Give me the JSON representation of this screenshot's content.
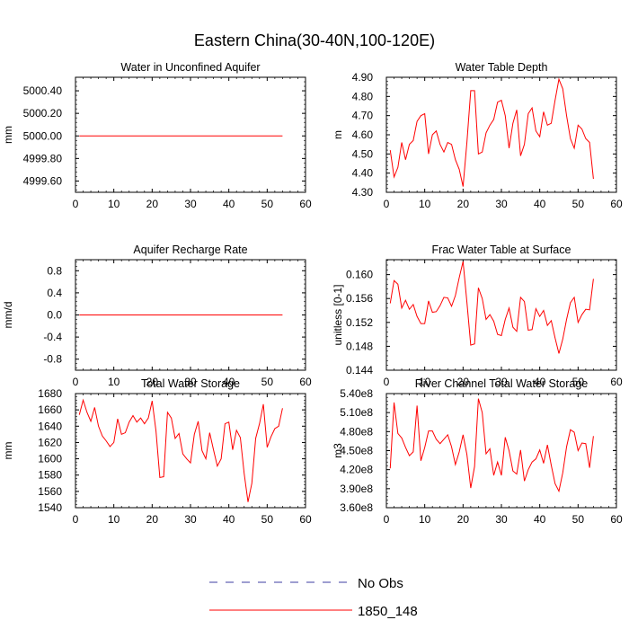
{
  "figure": {
    "title": "Eastern China(30-40N,100-120E)"
  },
  "chart_data": [
    {
      "type": "line",
      "title": "Water in Unconfined Aquifer",
      "xlabel": "",
      "ylabel": "mm",
      "xlim": [
        0,
        60
      ],
      "ylim": [
        4999.5,
        5000.52
      ],
      "xticks": [
        0,
        10,
        20,
        30,
        40,
        50,
        60
      ],
      "yticks": [
        4999.6,
        4999.8,
        5000.0,
        5000.2,
        5000.4
      ],
      "ytick_labels": [
        "4999.60",
        "4999.80",
        "5000.00",
        "5000.20",
        "5000.40"
      ],
      "series": [
        {
          "name": "1850_148",
          "x_start": 1,
          "values": [
            5000,
            5000,
            5000,
            5000,
            5000,
            5000,
            5000,
            5000,
            5000,
            5000,
            5000,
            5000,
            5000,
            5000,
            5000,
            5000,
            5000,
            5000,
            5000,
            5000,
            5000,
            5000,
            5000,
            5000,
            5000,
            5000,
            5000,
            5000,
            5000,
            5000,
            5000,
            5000,
            5000,
            5000,
            5000,
            5000,
            5000,
            5000,
            5000,
            5000,
            5000,
            5000,
            5000,
            5000,
            5000,
            5000,
            5000,
            5000,
            5000,
            5000,
            5000,
            5000,
            5000,
            5000
          ]
        }
      ]
    },
    {
      "type": "line",
      "title": "Water Table Depth",
      "xlabel": "",
      "ylabel": "m",
      "xlim": [
        0,
        60
      ],
      "ylim": [
        4.3,
        4.9
      ],
      "xticks": [
        0,
        10,
        20,
        30,
        40,
        50,
        60
      ],
      "yticks": [
        4.3,
        4.4,
        4.5,
        4.6,
        4.7,
        4.8,
        4.9
      ],
      "ytick_labels": [
        "4.30",
        "4.40",
        "4.50",
        "4.60",
        "4.70",
        "4.80",
        "4.90"
      ],
      "series": [
        {
          "name": "1850_148",
          "x_start": 1,
          "values": [
            4.52,
            4.38,
            4.43,
            4.56,
            4.47,
            4.55,
            4.57,
            4.67,
            4.7,
            4.71,
            4.5,
            4.6,
            4.62,
            4.55,
            4.51,
            4.56,
            4.55,
            4.47,
            4.42,
            4.33,
            4.56,
            4.83,
            4.83,
            4.5,
            4.51,
            4.61,
            4.65,
            4.68,
            4.77,
            4.78,
            4.7,
            4.53,
            4.66,
            4.73,
            4.49,
            4.55,
            4.71,
            4.74,
            4.62,
            4.59,
            4.72,
            4.65,
            4.66,
            4.78,
            4.89,
            4.84,
            4.7,
            4.58,
            4.53,
            4.65,
            4.63,
            4.58,
            4.56,
            4.37
          ]
        }
      ]
    },
    {
      "type": "line",
      "title": "Aquifer Recharge Rate",
      "xlabel": "",
      "ylabel": "mm/d",
      "xlim": [
        0,
        60
      ],
      "ylim": [
        -1.0,
        1.0
      ],
      "xticks": [
        0,
        10,
        20,
        30,
        40,
        50,
        60
      ],
      "yticks": [
        -0.8,
        -0.4,
        0.0,
        0.4,
        0.8
      ],
      "ytick_labels": [
        "-0.8",
        "-0.4",
        "0.0",
        "0.4",
        "0.8"
      ],
      "series": [
        {
          "name": "1850_148",
          "x_start": 1,
          "values": [
            0,
            0,
            0,
            0,
            0,
            0,
            0,
            0,
            0,
            0,
            0,
            0,
            0,
            0,
            0,
            0,
            0,
            0,
            0,
            0,
            0,
            0,
            0,
            0,
            0,
            0,
            0,
            0,
            0,
            0,
            0,
            0,
            0,
            0,
            0,
            0,
            0,
            0,
            0,
            0,
            0,
            0,
            0,
            0,
            0,
            0,
            0,
            0,
            0,
            0,
            0,
            0,
            0,
            0
          ]
        }
      ]
    },
    {
      "type": "line",
      "title": "Frac Water Table at Surface",
      "xlabel": "",
      "ylabel": "unitless [0-1]",
      "xlim": [
        0,
        60
      ],
      "ylim": [
        0.144,
        0.1625
      ],
      "xticks": [
        0,
        10,
        20,
        30,
        40,
        50,
        60
      ],
      "yticks": [
        0.144,
        0.148,
        0.152,
        0.156,
        0.16
      ],
      "ytick_labels": [
        "0.144",
        "0.148",
        "0.152",
        "0.156",
        "0.160"
      ],
      "series": [
        {
          "name": "1850_148",
          "x_start": 1,
          "values": [
            0.1552,
            0.159,
            0.1584,
            0.1544,
            0.1557,
            0.1542,
            0.155,
            0.153,
            0.1518,
            0.1518,
            0.1556,
            0.1537,
            0.1538,
            0.1548,
            0.1562,
            0.1561,
            0.1547,
            0.1565,
            0.1595,
            0.1622,
            0.1554,
            0.1482,
            0.1484,
            0.1578,
            0.156,
            0.1525,
            0.1533,
            0.1522,
            0.15,
            0.1498,
            0.1525,
            0.1544,
            0.1512,
            0.1505,
            0.1562,
            0.1555,
            0.1507,
            0.1508,
            0.1543,
            0.153,
            0.154,
            0.1515,
            0.1523,
            0.1494,
            0.1468,
            0.1492,
            0.1525,
            0.1553,
            0.1562,
            0.152,
            0.1533,
            0.1542,
            0.1541,
            0.1593
          ]
        }
      ]
    },
    {
      "type": "line",
      "title": "Total Water Storage",
      "xlabel": "",
      "ylabel": "mm",
      "xlim": [
        0,
        60
      ],
      "ylim": [
        1540,
        1680
      ],
      "xticks": [
        0,
        10,
        20,
        30,
        40,
        50,
        60
      ],
      "yticks": [
        1540,
        1560,
        1580,
        1600,
        1620,
        1640,
        1660,
        1680
      ],
      "ytick_labels": [
        "1540",
        "1560",
        "1580",
        "1600",
        "1620",
        "1640",
        "1660",
        "1680"
      ],
      "series": [
        {
          "name": "1850_148",
          "x_start": 1,
          "values": [
            1654,
            1672,
            1657,
            1646,
            1663,
            1640,
            1628,
            1622,
            1615,
            1620,
            1649,
            1630,
            1632,
            1645,
            1653,
            1645,
            1650,
            1643,
            1650,
            1671,
            1634,
            1577,
            1578,
            1657,
            1650,
            1625,
            1631,
            1606,
            1600,
            1595,
            1630,
            1646,
            1610,
            1600,
            1632,
            1611,
            1591,
            1600,
            1643,
            1645,
            1611,
            1635,
            1626,
            1582,
            1547,
            1570,
            1625,
            1643,
            1667,
            1614,
            1627,
            1637,
            1640,
            1662
          ]
        }
      ]
    },
    {
      "type": "line",
      "title": "River Channel Total Water Storage",
      "xlabel": "",
      "ylabel": "m3",
      "xlim": [
        0,
        60
      ],
      "ylim": [
        360000000,
        540000000
      ],
      "xticks": [
        0,
        10,
        20,
        30,
        40,
        50,
        60
      ],
      "yticks": [
        360000000,
        390000000,
        420000000,
        450000000,
        480000000,
        510000000,
        540000000
      ],
      "ytick_labels": [
        "3.60e8",
        "3.90e8",
        "4.20e8",
        "4.50e8",
        "4.80e8",
        "5.10e8",
        "5.40e8"
      ],
      "series": [
        {
          "name": "1850_148",
          "x_start": 1,
          "values": [
            422000000,
            526000000,
            477000000,
            470000000,
            455000000,
            442000000,
            448000000,
            521000000,
            434000000,
            455000000,
            481000000,
            481000000,
            468000000,
            461000000,
            468000000,
            475000000,
            456000000,
            428000000,
            448000000,
            475000000,
            444000000,
            391000000,
            425000000,
            532000000,
            510000000,
            445000000,
            453000000,
            411000000,
            432000000,
            411000000,
            471000000,
            450000000,
            418000000,
            413000000,
            451000000,
            402000000,
            420000000,
            432000000,
            437000000,
            451000000,
            430000000,
            459000000,
            427000000,
            398000000,
            386000000,
            415000000,
            456000000,
            483000000,
            479000000,
            450000000,
            462000000,
            461000000,
            423000000,
            473000000
          ]
        }
      ]
    }
  ],
  "legend": {
    "entries": [
      {
        "label": "No Obs",
        "style": "dashed",
        "color": "#3c3ca0"
      },
      {
        "label": "1850_148",
        "style": "solid",
        "color": "#ff0000"
      }
    ]
  },
  "colors": {
    "series": "#ff0000",
    "axes": "#000000",
    "obs": "#3c3ca0"
  }
}
